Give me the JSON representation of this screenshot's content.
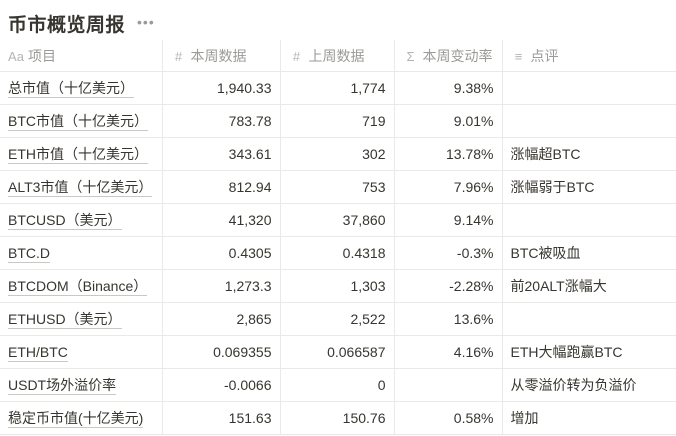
{
  "title": "币市概览周报",
  "more_glyph": "•••",
  "columns": [
    {
      "icon": "Aa",
      "icon_name": "text-property-icon",
      "label": "项目"
    },
    {
      "icon": "#",
      "icon_name": "number-property-icon",
      "label": "本周数据"
    },
    {
      "icon": "#",
      "icon_name": "number-property-icon",
      "label": "上周数据"
    },
    {
      "icon": "Σ",
      "icon_name": "formula-property-icon",
      "label": "本周变动率"
    },
    {
      "icon": "≡",
      "icon_name": "text-lines-property-icon",
      "label": "点评"
    }
  ],
  "rows": [
    {
      "name": "总市值（十亿美元）",
      "this_week": "1,940.33",
      "last_week": "1,774",
      "change": "9.38%",
      "note": ""
    },
    {
      "name": "BTC市值（十亿美元）",
      "this_week": "783.78",
      "last_week": "719",
      "change": "9.01%",
      "note": ""
    },
    {
      "name": "ETH市值（十亿美元）",
      "this_week": "343.61",
      "last_week": "302",
      "change": "13.78%",
      "note": "涨幅超BTC"
    },
    {
      "name": "ALT3市值（十亿美元）",
      "this_week": "812.94",
      "last_week": "753",
      "change": "7.96%",
      "note": "涨幅弱于BTC"
    },
    {
      "name": "BTCUSD（美元）",
      "this_week": "41,320",
      "last_week": "37,860",
      "change": "9.14%",
      "note": ""
    },
    {
      "name": "BTC.D",
      "this_week": "0.4305",
      "last_week": "0.4318",
      "change": "-0.3%",
      "note": "BTC被吸血"
    },
    {
      "name": "BTCDOM（Binance）",
      "this_week": "1,273.3",
      "last_week": "1,303",
      "change": "-2.28%",
      "note": "前20ALT涨幅大"
    },
    {
      "name": "ETHUSD（美元）",
      "this_week": "2,865",
      "last_week": "2,522",
      "change": "13.6%",
      "note": ""
    },
    {
      "name": "ETH/BTC",
      "this_week": "0.069355",
      "last_week": "0.066587",
      "change": "4.16%",
      "note": "ETH大幅跑赢BTC"
    },
    {
      "name": "USDT场外溢价率",
      "this_week": "-0.0066",
      "last_week": "0",
      "change": "",
      "note": "从零溢价转为负溢价"
    },
    {
      "name": "稳定币市值(十亿美元)",
      "this_week": "151.63",
      "last_week": "150.76",
      "change": "0.58%",
      "note": "增加"
    }
  ]
}
